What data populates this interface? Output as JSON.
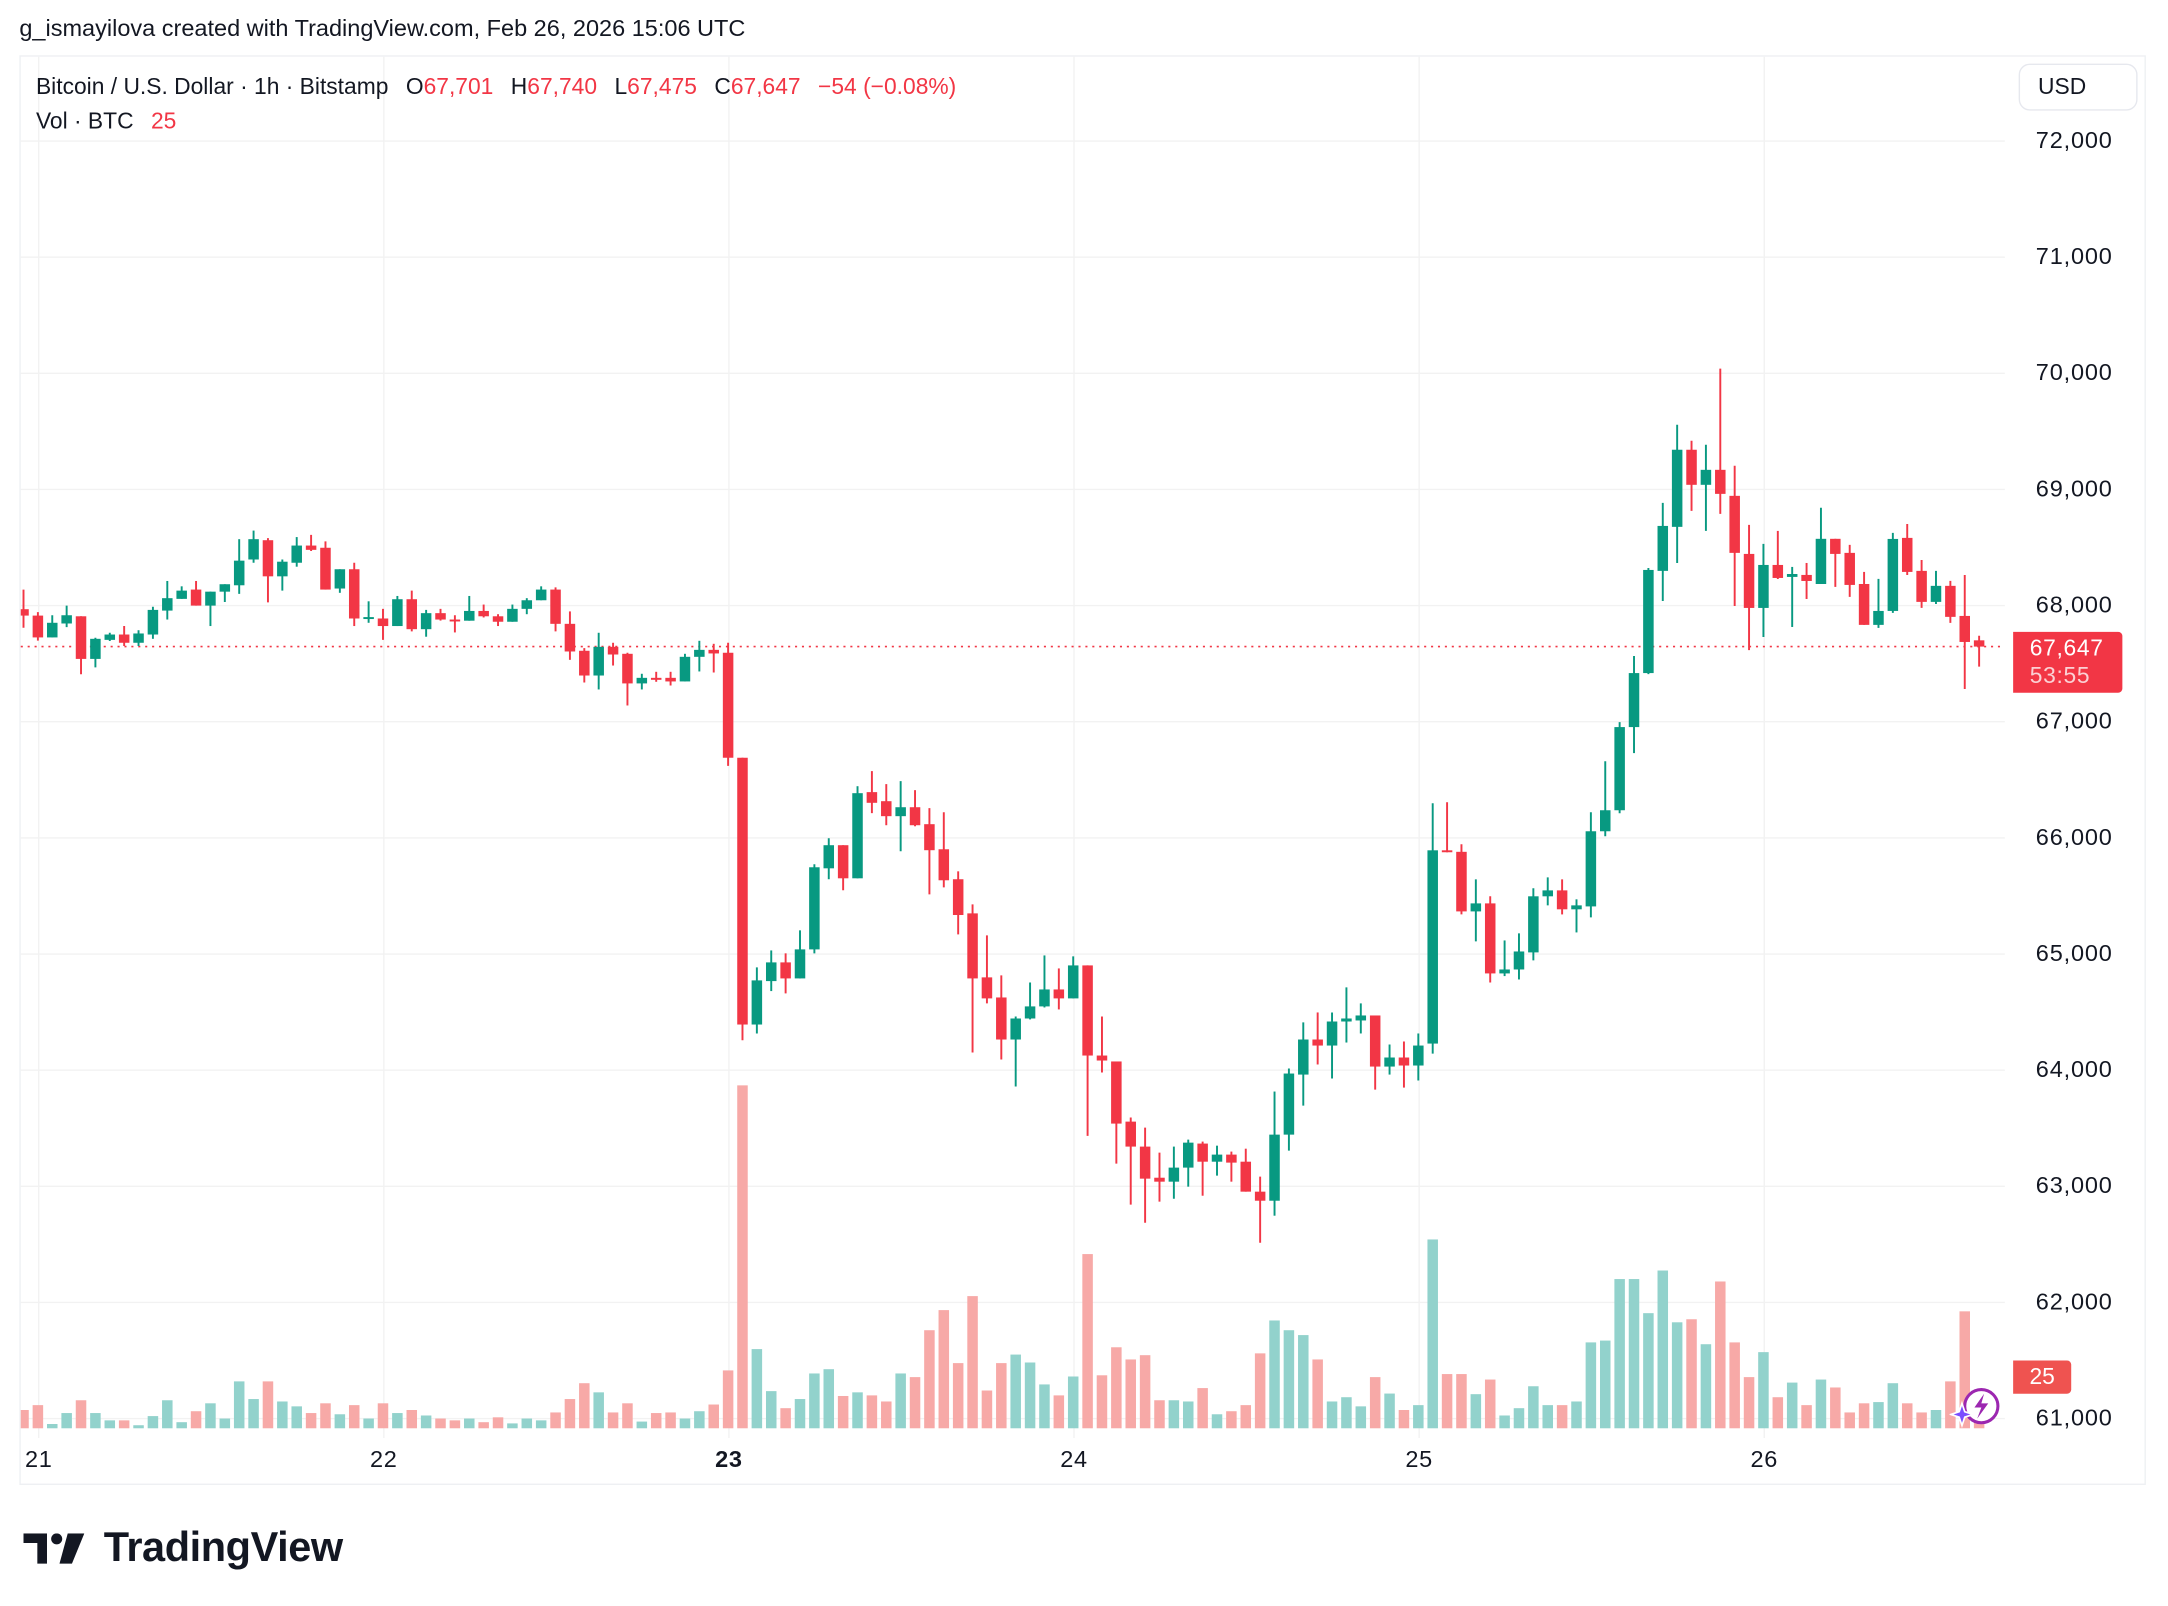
{
  "attribution": "g_ismayilova created with TradingView.com, Feb 26, 2026 15:06 UTC",
  "legend": {
    "symbol": "Bitcoin / U.S. Dollar · 1h · Bitstamp",
    "open_label": "O",
    "open": "67,701",
    "high_label": "H",
    "high": "67,740",
    "low_label": "L",
    "low": "67,475",
    "close_label": "C",
    "close": "67,647",
    "change": "−54 (−0.08%)",
    "volume_label": "Vol · BTC",
    "volume": "25"
  },
  "currency_button": "USD",
  "price_badge": {
    "price": "67,647",
    "countdown": "53:55"
  },
  "volume_badge": "25",
  "logo_text": "TradingView",
  "icons": {
    "fx_button": "sparkle-lightning-icon",
    "logo": "tradingview-logo-icon"
  },
  "colors": {
    "up": "#089981",
    "down": "#f23645",
    "volume_up": "#92d2cc",
    "volume_down": "#f7a9a7",
    "last_price_line": "#f23645"
  },
  "chart_data": {
    "type": "candlestick",
    "interval": "1h",
    "y_ticks": [
      "72,000",
      "71,000",
      "70,000",
      "69,000",
      "68,000",
      "67,000",
      "66,000",
      "65,000",
      "64,000",
      "63,000",
      "62,000",
      "61,000"
    ],
    "y_tick_values": [
      72000,
      71000,
      70000,
      69000,
      68000,
      67000,
      66000,
      65000,
      64000,
      63000,
      62000,
      61000
    ],
    "x_ticks": [
      {
        "label": "21",
        "bold": false
      },
      {
        "label": "22",
        "bold": false
      },
      {
        "label": "23",
        "bold": true
      },
      {
        "label": "24",
        "bold": false
      },
      {
        "label": "25",
        "bold": false
      },
      {
        "label": "26",
        "bold": false
      }
    ],
    "last_price": 67647,
    "grid": true,
    "candle_fields": [
      "open",
      "high",
      "low",
      "close",
      "volume"
    ],
    "candles": [
      [
        67969,
        68138,
        67809,
        67914,
        30
      ],
      [
        67914,
        67944,
        67698,
        67726,
        38
      ],
      [
        67726,
        67917,
        67726,
        67852,
        7
      ],
      [
        67846,
        68000,
        67815,
        67917,
        25
      ],
      [
        67908,
        67908,
        67409,
        67541,
        46
      ],
      [
        67541,
        67723,
        67468,
        67714,
        25
      ],
      [
        67705,
        67766,
        67695,
        67751,
        13
      ],
      [
        67751,
        67824,
        67652,
        67680,
        13
      ],
      [
        67680,
        67788,
        67652,
        67760,
        5
      ],
      [
        67751,
        67990,
        67714,
        67963,
        20
      ],
      [
        67957,
        68212,
        67880,
        68064,
        46
      ],
      [
        68058,
        68166,
        68058,
        68129,
        10
      ],
      [
        68138,
        68212,
        68000,
        68000,
        28
      ],
      [
        68000,
        68120,
        67824,
        68120,
        41
      ],
      [
        68120,
        68184,
        68031,
        68184,
        16
      ],
      [
        68175,
        68572,
        68101,
        68387,
        77
      ],
      [
        68397,
        68646,
        68369,
        68572,
        48
      ],
      [
        68563,
        68581,
        68028,
        68252,
        77
      ],
      [
        68252,
        68397,
        68129,
        68378,
        44
      ],
      [
        68369,
        68590,
        68335,
        68517,
        36
      ],
      [
        68517,
        68609,
        68470,
        68480,
        25
      ],
      [
        68498,
        68553,
        68138,
        68138,
        41
      ],
      [
        68147,
        68313,
        68110,
        68313,
        23
      ],
      [
        68313,
        68369,
        67824,
        67889,
        38
      ],
      [
        67889,
        68037,
        67852,
        67901,
        16
      ],
      [
        67889,
        67972,
        67705,
        67824,
        41
      ],
      [
        67824,
        68083,
        67824,
        68055,
        25
      ],
      [
        68055,
        68129,
        67778,
        67797,
        30
      ],
      [
        67797,
        67963,
        67732,
        67935,
        21
      ],
      [
        67935,
        67972,
        67871,
        67880,
        16
      ],
      [
        67880,
        67917,
        67769,
        67870,
        13
      ],
      [
        67870,
        68083,
        67870,
        67954,
        16
      ],
      [
        67954,
        68009,
        67898,
        67908,
        10
      ],
      [
        67908,
        67926,
        67824,
        67861,
        18
      ],
      [
        67861,
        68009,
        67861,
        67972,
        8
      ],
      [
        67972,
        68064,
        67926,
        68046,
        16
      ],
      [
        68046,
        68166,
        68046,
        68138,
        13
      ],
      [
        68138,
        68157,
        67778,
        67843,
        26
      ],
      [
        67843,
        67950,
        67533,
        67605,
        48
      ],
      [
        67611,
        67634,
        67338,
        67398,
        74
      ],
      [
        67398,
        67766,
        67278,
        67645,
        59
      ],
      [
        67645,
        67680,
        67484,
        67579,
        26
      ],
      [
        67585,
        67594,
        67140,
        67330,
        41
      ],
      [
        67330,
        67413,
        67278,
        67378,
        11
      ],
      [
        67378,
        67430,
        67344,
        67361,
        25
      ],
      [
        67378,
        67430,
        67312,
        67347,
        26
      ],
      [
        67347,
        67585,
        67347,
        67559,
        16
      ],
      [
        67559,
        67697,
        67433,
        67619,
        28
      ],
      [
        67619,
        67671,
        67424,
        67588,
        39
      ],
      [
        67594,
        67680,
        66620,
        66690,
        95
      ],
      [
        66690,
        66690,
        64258,
        64393,
        563
      ],
      [
        64393,
        64885,
        64316,
        64773,
        130
      ],
      [
        64767,
        65031,
        64681,
        64928,
        61
      ],
      [
        64928,
        65006,
        64661,
        64790,
        33
      ],
      [
        64790,
        65204,
        64790,
        65040,
        48
      ],
      [
        65040,
        65773,
        65006,
        65747,
        90
      ],
      [
        65738,
        65997,
        65644,
        65937,
        97
      ],
      [
        65937,
        65937,
        65549,
        65652,
        53
      ],
      [
        65652,
        66445,
        65652,
        66385,
        59
      ],
      [
        66394,
        66575,
        66213,
        66302,
        54
      ],
      [
        66316,
        66463,
        66109,
        66187,
        44
      ],
      [
        66187,
        66489,
        65885,
        66264,
        90
      ],
      [
        66264,
        66411,
        66100,
        66109,
        84
      ],
      [
        66118,
        66256,
        65514,
        65894,
        161
      ],
      [
        65902,
        66221,
        65574,
        65635,
        194
      ],
      [
        65644,
        65712,
        65169,
        65336,
        107
      ],
      [
        65350,
        65428,
        64152,
        64790,
        217
      ],
      [
        64799,
        65161,
        64575,
        64618,
        62
      ],
      [
        64626,
        64816,
        64092,
        64264,
        107
      ],
      [
        64264,
        64462,
        63859,
        64445,
        121
      ],
      [
        64445,
        64755,
        64437,
        64549,
        108
      ],
      [
        64549,
        64988,
        64540,
        64695,
        72
      ],
      [
        64695,
        64876,
        64523,
        64618,
        54
      ],
      [
        64618,
        64980,
        64618,
        64902,
        85
      ],
      [
        64902,
        64902,
        63434,
        64126,
        286
      ],
      [
        64126,
        64462,
        63980,
        64083,
        87
      ],
      [
        64075,
        64075,
        63195,
        63540,
        133
      ],
      [
        63557,
        63592,
        62842,
        63342,
        113
      ],
      [
        63342,
        63505,
        62686,
        63066,
        120
      ],
      [
        63074,
        63290,
        62868,
        63040,
        46
      ],
      [
        63040,
        63342,
        62893,
        63161,
        46
      ],
      [
        63161,
        63402,
        62997,
        63376,
        44
      ],
      [
        63368,
        63385,
        62919,
        63212,
        66
      ],
      [
        63212,
        63350,
        63092,
        63273,
        23
      ],
      [
        63273,
        63299,
        63040,
        63204,
        28
      ],
      [
        63212,
        63324,
        62954,
        62954,
        38
      ],
      [
        62954,
        63083,
        62514,
        62876,
        123
      ],
      [
        62876,
        63816,
        62747,
        63445,
        177
      ],
      [
        63445,
        64014,
        63307,
        63971,
        161
      ],
      [
        63962,
        64411,
        63695,
        64264,
        153
      ],
      [
        64264,
        64497,
        64049,
        64212,
        113
      ],
      [
        64212,
        64497,
        63928,
        64419,
        44
      ],
      [
        64419,
        64713,
        64238,
        64445,
        51
      ],
      [
        64428,
        64575,
        64316,
        64471,
        36
      ],
      [
        64471,
        64471,
        63833,
        64031,
        84
      ],
      [
        64031,
        64221,
        63962,
        64109,
        57
      ],
      [
        64109,
        64247,
        63850,
        64040,
        30
      ],
      [
        64040,
        64316,
        63911,
        64212,
        38
      ],
      [
        64229,
        66298,
        64143,
        65893,
        310
      ],
      [
        65893,
        66307,
        65876,
        65880,
        89
      ],
      [
        65880,
        65945,
        65341,
        65367,
        89
      ],
      [
        65367,
        65643,
        65109,
        65436,
        56
      ],
      [
        65436,
        65497,
        64755,
        64833,
        80
      ],
      [
        64833,
        65117,
        64810,
        64867,
        21
      ],
      [
        64867,
        65178,
        64781,
        65022,
        33
      ],
      [
        65014,
        65566,
        64945,
        65497,
        69
      ],
      [
        65497,
        65660,
        65419,
        65548,
        38
      ],
      [
        65548,
        65643,
        65341,
        65385,
        38
      ],
      [
        65385,
        65471,
        65186,
        65419,
        44
      ],
      [
        65410,
        66221,
        65316,
        66057,
        141
      ],
      [
        66057,
        66660,
        66014,
        66238,
        144
      ],
      [
        66238,
        66997,
        66212,
        66954,
        245
      ],
      [
        66954,
        67566,
        66730,
        67419,
        245
      ],
      [
        67419,
        68324,
        67410,
        68307,
        189
      ],
      [
        68299,
        68885,
        68040,
        68686,
        259
      ],
      [
        68678,
        69557,
        68367,
        69342,
        174
      ],
      [
        69342,
        69419,
        68816,
        69040,
        179
      ],
      [
        69040,
        69385,
        68643,
        69169,
        138
      ],
      [
        69169,
        70040,
        68790,
        68962,
        241
      ],
      [
        68945,
        69204,
        67997,
        68454,
        141
      ],
      [
        68445,
        68695,
        67617,
        67980,
        84
      ],
      [
        67980,
        68531,
        67730,
        68350,
        125
      ],
      [
        68350,
        68643,
        68229,
        68238,
        51
      ],
      [
        68247,
        68333,
        67816,
        68272,
        75
      ],
      [
        68264,
        68367,
        68057,
        68212,
        38
      ],
      [
        68186,
        68842,
        68186,
        68575,
        80
      ],
      [
        68575,
        68575,
        68161,
        68445,
        67
      ],
      [
        68454,
        68523,
        68075,
        68178,
        26
      ],
      [
        68186,
        68290,
        67834,
        67834,
        41
      ],
      [
        67834,
        68230,
        67808,
        67954,
        43
      ],
      [
        67954,
        68626,
        67937,
        68574,
        74
      ],
      [
        68583,
        68703,
        68264,
        68290,
        41
      ],
      [
        68299,
        68393,
        67980,
        68032,
        26
      ],
      [
        68032,
        68299,
        68014,
        68170,
        30
      ],
      [
        68170,
        68213,
        67851,
        67903,
        77
      ],
      [
        67911,
        68264,
        67282,
        67687,
        192
      ],
      [
        67701,
        67740,
        67475,
        67647,
        25
      ]
    ]
  }
}
